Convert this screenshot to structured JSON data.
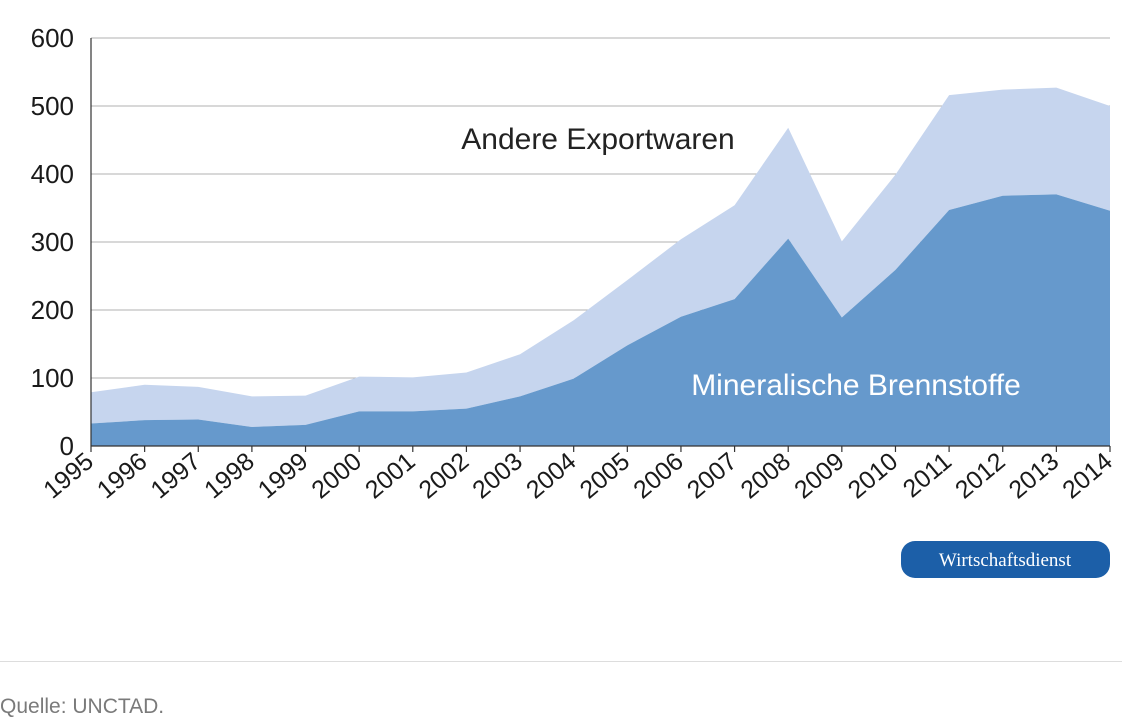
{
  "chart_data": {
    "type": "area",
    "stacked": true,
    "x": [
      "1995",
      "1996",
      "1997",
      "1998",
      "1999",
      "2000",
      "2001",
      "2002",
      "2003",
      "2004",
      "2005",
      "2006",
      "2007",
      "2008",
      "2009",
      "2010",
      "2011",
      "2012",
      "2013",
      "2014"
    ],
    "series": [
      {
        "name": "Mineralische Brennstoffe",
        "values": [
          33,
          38,
          39,
          28,
          31,
          51,
          51,
          55,
          73,
          99,
          148,
          190,
          216,
          305,
          189,
          259,
          347,
          368,
          370,
          346
        ]
      },
      {
        "name": "Andere Exportwaren",
        "values": [
          46,
          52,
          48,
          45,
          43,
          51,
          50,
          53,
          62,
          86,
          96,
          114,
          138,
          163,
          112,
          140,
          169,
          156,
          157,
          154
        ]
      }
    ],
    "ylim": [
      0,
      600
    ],
    "yticks": [
      "0",
      "100",
      "200",
      "300",
      "400",
      "500",
      "600"
    ],
    "grid": true,
    "colors": {
      "fuel": "#6699cc",
      "other": "#c6d5ee",
      "grid": "#b0b0b0",
      "badge": "#1c5fa8"
    }
  },
  "labels": {
    "other_label": "Andere Exportwaren",
    "fuel_label": "Mineralische Brennstoffe"
  },
  "badge": {
    "text": "Wirtschaftsdienst"
  },
  "source": {
    "text": "Quelle: UNCTAD."
  }
}
